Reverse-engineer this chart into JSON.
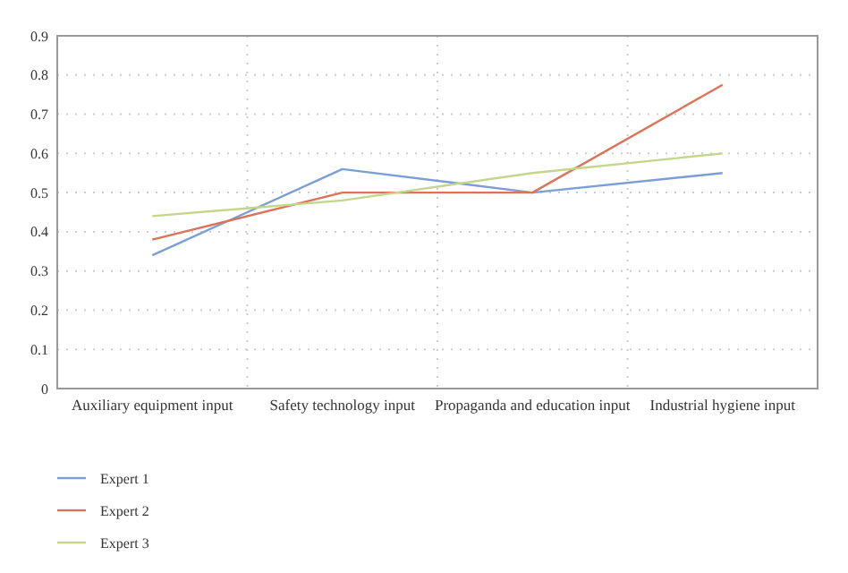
{
  "chart_data": {
    "type": "line",
    "categories": [
      "Auxiliary equipment input",
      "Safety technology input",
      "Propaganda and education input",
      "Industrial hygiene input"
    ],
    "series": [
      {
        "name": "Expert 1",
        "color": "#7b9fd4",
        "values": [
          0.34,
          0.56,
          0.5,
          0.55
        ]
      },
      {
        "name": "Expert 2",
        "color": "#d9735a",
        "values": [
          0.38,
          0.5,
          0.5,
          0.775
        ]
      },
      {
        "name": "Expert 3",
        "color": "#c3d68a",
        "values": [
          0.44,
          0.48,
          0.55,
          0.6
        ]
      }
    ],
    "ylim": [
      0,
      0.9
    ],
    "yticks": [
      0,
      0.1,
      0.2,
      0.3,
      0.4,
      0.5,
      0.6,
      0.7,
      0.8,
      0.9
    ],
    "grid": true,
    "legend": "bottom left",
    "marker": "none",
    "line_style": "solid"
  }
}
